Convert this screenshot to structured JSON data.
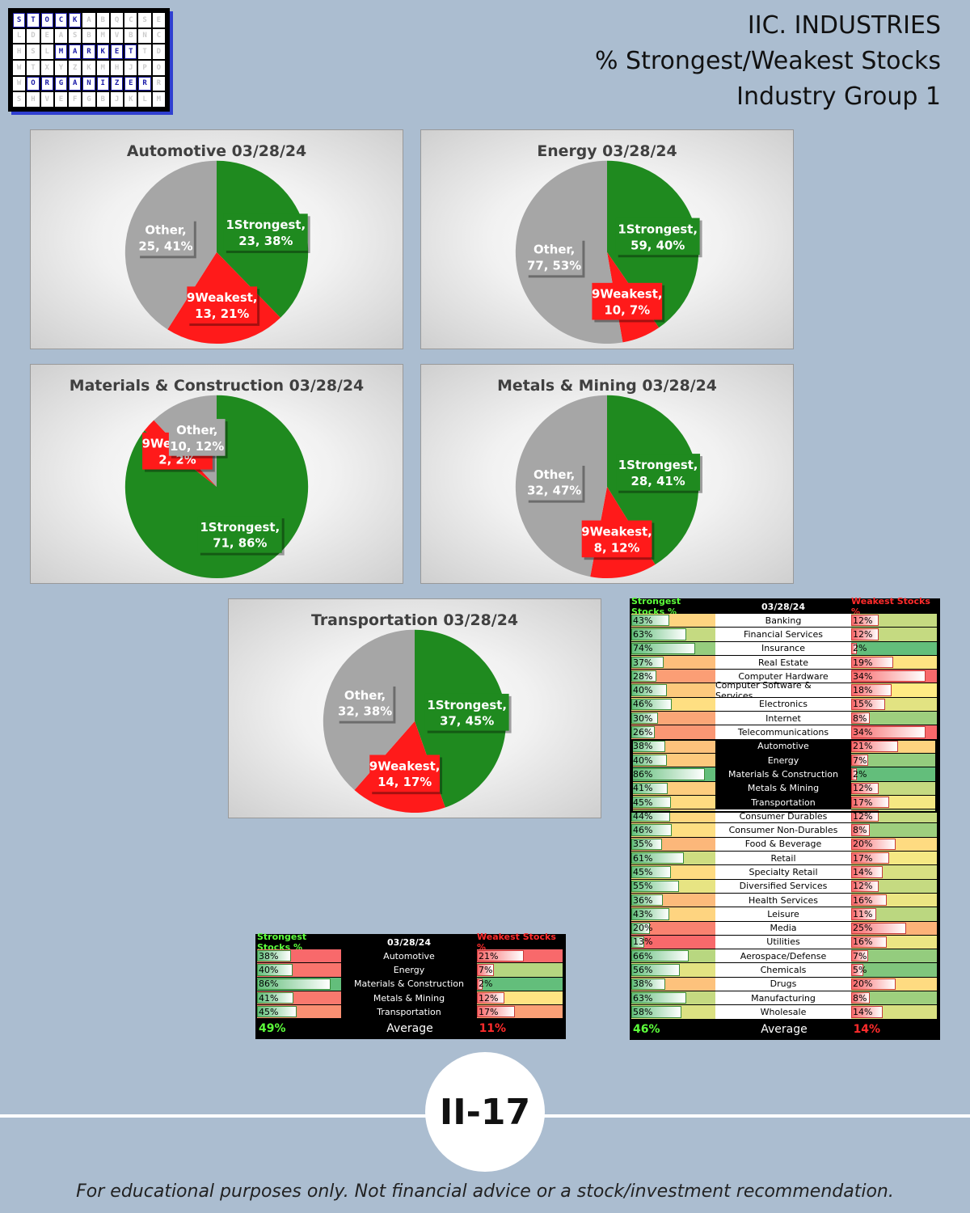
{
  "logo": {
    "rows": [
      [
        "S",
        "T",
        "O",
        "C",
        "K",
        "",
        "",
        "",
        "",
        "",
        ""
      ],
      [
        "",
        "",
        "",
        "",
        "",
        "",
        "",
        "",
        "",
        "",
        ""
      ],
      [
        "",
        "",
        "",
        "M",
        "A",
        "R",
        "K",
        "E",
        "T",
        "",
        ""
      ],
      [
        "",
        "",
        "",
        "",
        "",
        "",
        "",
        "",
        "",
        "",
        ""
      ],
      [
        "",
        "O",
        "R",
        "G",
        "A",
        "N",
        "I",
        "Z",
        "E",
        "R",
        ""
      ],
      [
        "",
        "",
        "",
        "",
        "",
        "",
        "",
        "",
        "",
        "",
        ""
      ]
    ],
    "filler": "ABQCSELDEASBMVBNCHSLTDWTXYZKMHJPOWRSHVEFGBJKLMNPQRSTUVBJDMNPR"
  },
  "header": {
    "line1": "IIC. INDUSTRIES",
    "line2": "% Strongest/Weakest Stocks",
    "line3": "Industry Group 1"
  },
  "colors": {
    "strong": "#1f8a1f",
    "weak": "#ff1a1a",
    "other": "#a6a6a6"
  },
  "chart_data": [
    {
      "type": "pie",
      "title": "Automotive 03/28/24",
      "slices": [
        {
          "label": "1Strongest",
          "value": 23,
          "pct": "38%"
        },
        {
          "label": "9Weakest",
          "value": 13,
          "pct": "21%"
        },
        {
          "label": "Other",
          "value": 25,
          "pct": "41%"
        }
      ]
    },
    {
      "type": "pie",
      "title": "Energy 03/28/24",
      "slices": [
        {
          "label": "1Strongest",
          "value": 59,
          "pct": "40%"
        },
        {
          "label": "9Weakest",
          "value": 10,
          "pct": "7%"
        },
        {
          "label": "Other",
          "value": 77,
          "pct": "53%"
        }
      ]
    },
    {
      "type": "pie",
      "title": "Materials & Construction 03/28/24",
      "slices": [
        {
          "label": "1Strongest",
          "value": 71,
          "pct": "86%"
        },
        {
          "label": "9Weakest",
          "value": 2,
          "pct": "2%"
        },
        {
          "label": "Other",
          "value": 10,
          "pct": "12%"
        }
      ]
    },
    {
      "type": "pie",
      "title": "Metals & Mining 03/28/24",
      "slices": [
        {
          "label": "1Strongest",
          "value": 28,
          "pct": "41%"
        },
        {
          "label": "9Weakest",
          "value": 8,
          "pct": "12%"
        },
        {
          "label": "Other",
          "value": 32,
          "pct": "47%"
        }
      ]
    },
    {
      "type": "pie",
      "title": "Transportation 03/28/24",
      "slices": [
        {
          "label": "1Strongest",
          "value": 37,
          "pct": "45%"
        },
        {
          "label": "9Weakest",
          "value": 14,
          "pct": "17%"
        },
        {
          "label": "Other",
          "value": 32,
          "pct": "38%"
        }
      ]
    },
    {
      "type": "table",
      "name": "small",
      "headers": {
        "strong": "Strongest Stocks %",
        "date": "03/28/24",
        "weak": "Weakest Stocks %"
      },
      "rows": [
        {
          "name": "Automotive",
          "strong": 38,
          "weak": 21
        },
        {
          "name": "Energy",
          "strong": 40,
          "weak": 7
        },
        {
          "name": "Materials & Construction",
          "strong": 86,
          "weak": 2
        },
        {
          "name": "Metals & Mining",
          "strong": 41,
          "weak": 12
        },
        {
          "name": "Transportation",
          "strong": 45,
          "weak": 17
        }
      ],
      "average": {
        "strong": "49%",
        "label": "Average",
        "weak": "11%"
      }
    },
    {
      "type": "table",
      "name": "large",
      "headers": {
        "strong": "Strongest Stocks %",
        "date": "03/28/24",
        "weak": "Weakest Stocks %"
      },
      "highlight": [
        "Automotive",
        "Energy",
        "Materials & Construction",
        "Metals & Mining",
        "Transportation"
      ],
      "rows": [
        {
          "name": "Banking",
          "strong": 43,
          "weak": 12
        },
        {
          "name": "Financial Services",
          "strong": 63,
          "weak": 12
        },
        {
          "name": "Insurance",
          "strong": 74,
          "weak": 2
        },
        {
          "name": "Real Estate",
          "strong": 37,
          "weak": 19
        },
        {
          "name": "Computer Hardware",
          "strong": 28,
          "weak": 34
        },
        {
          "name": "Computer Software & Services",
          "strong": 40,
          "weak": 18
        },
        {
          "name": "Electronics",
          "strong": 46,
          "weak": 15
        },
        {
          "name": "Internet",
          "strong": 30,
          "weak": 8
        },
        {
          "name": "Telecommunications",
          "strong": 26,
          "weak": 34
        },
        {
          "name": "Automotive",
          "strong": 38,
          "weak": 21
        },
        {
          "name": "Energy",
          "strong": 40,
          "weak": 7
        },
        {
          "name": "Materials & Construction",
          "strong": 86,
          "weak": 2
        },
        {
          "name": "Metals & Mining",
          "strong": 41,
          "weak": 12
        },
        {
          "name": "Transportation",
          "strong": 45,
          "weak": 17
        },
        {
          "name": "Consumer Durables",
          "strong": 44,
          "weak": 12
        },
        {
          "name": "Consumer Non-Durables",
          "strong": 46,
          "weak": 8
        },
        {
          "name": "Food & Beverage",
          "strong": 35,
          "weak": 20
        },
        {
          "name": "Retail",
          "strong": 61,
          "weak": 17
        },
        {
          "name": "Specialty Retail",
          "strong": 45,
          "weak": 14
        },
        {
          "name": "Diversified Services",
          "strong": 55,
          "weak": 12
        },
        {
          "name": "Health Services",
          "strong": 36,
          "weak": 16
        },
        {
          "name": "Leisure",
          "strong": 43,
          "weak": 11
        },
        {
          "name": "Media",
          "strong": 20,
          "weak": 25
        },
        {
          "name": "Utilities",
          "strong": 13,
          "weak": 16
        },
        {
          "name": "Aerospace/Defense",
          "strong": 66,
          "weak": 7
        },
        {
          "name": "Chemicals",
          "strong": 56,
          "weak": 5
        },
        {
          "name": "Drugs",
          "strong": 38,
          "weak": 20
        },
        {
          "name": "Manufacturing",
          "strong": 63,
          "weak": 8
        },
        {
          "name": "Wholesale",
          "strong": 58,
          "weak": 14
        }
      ],
      "average": {
        "strong": "46%",
        "label": "Average",
        "weak": "14%"
      }
    }
  ],
  "footer": {
    "page": "II-17",
    "disclaimer": "For educational purposes only. Not financial advice or a stock/investment recommendation."
  }
}
